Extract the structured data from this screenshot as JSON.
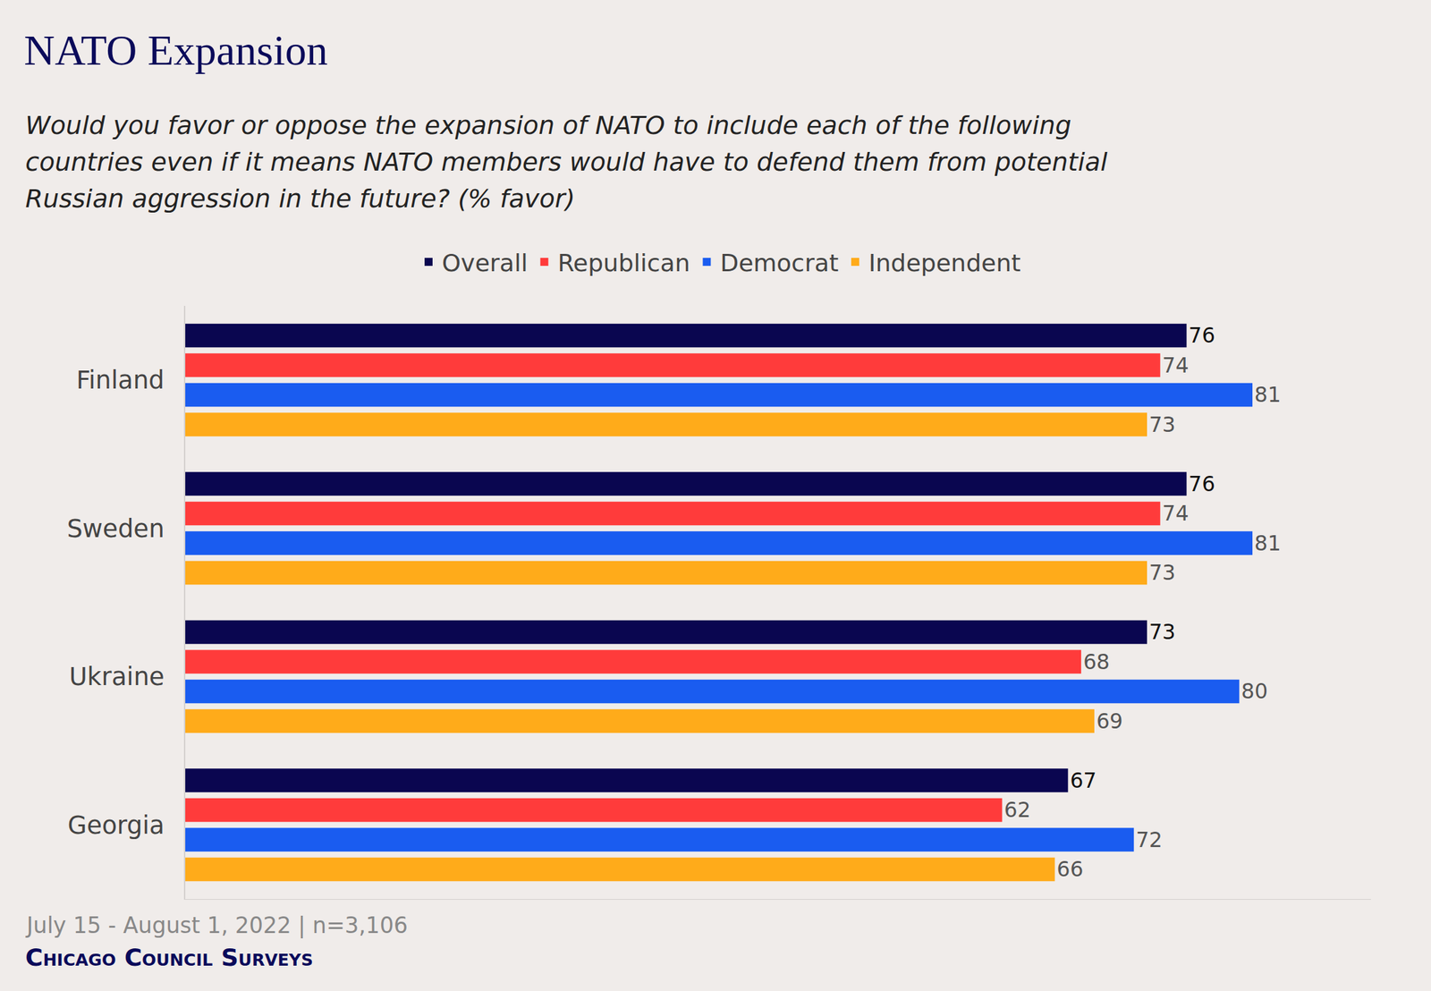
{
  "chart_data": {
    "type": "bar",
    "orientation": "horizontal",
    "title": "NATO Expansion",
    "subtitle": "Would you favor or oppose the expansion of NATO to include each of the following countries even if it means NATO members would have to defend them from potential Russian aggression in the future? (% favor)",
    "categories": [
      "Finland",
      "Sweden",
      "Ukraine",
      "Georgia"
    ],
    "series": [
      {
        "name": "Overall",
        "color": "#0a0650",
        "values": [
          76,
          76,
          73,
          67
        ]
      },
      {
        "name": "Republican",
        "color": "#ff3b3b",
        "values": [
          74,
          74,
          68,
          62
        ]
      },
      {
        "name": "Democrat",
        "color": "#1a5cf0",
        "values": [
          81,
          81,
          80,
          72
        ]
      },
      {
        "name": "Independent",
        "color": "#ffab1a",
        "values": [
          73,
          73,
          69,
          66
        ]
      }
    ],
    "xlim": [
      0,
      90
    ],
    "grid": false,
    "legend": "top",
    "data_labels": true,
    "tick_labels": "y",
    "annotations": [
      "July 15 - August 1, 2022 | n=3,106",
      "Chicago Council Surveys"
    ]
  }
}
